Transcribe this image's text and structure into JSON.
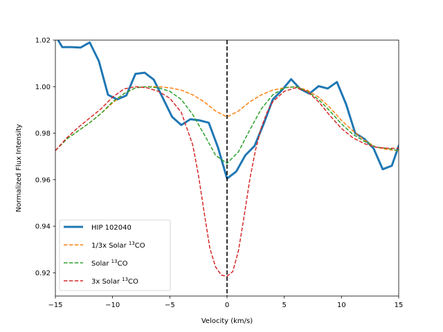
{
  "chart_data": {
    "type": "line",
    "xlabel": "Velocity (km/s)",
    "ylabel": "Normalized Flux Intensity",
    "xlim": [
      -15,
      15
    ],
    "ylim": [
      0.91,
      1.02
    ],
    "xticks": [
      -15,
      -10,
      -5,
      0,
      5,
      10,
      15
    ],
    "xtick_labels": [
      "−15",
      "−10",
      "−5",
      "0",
      "5",
      "10",
      "15"
    ],
    "yticks": [
      0.92,
      0.94,
      0.96,
      0.98,
      1.0,
      1.02
    ],
    "ytick_labels": [
      "0.92",
      "0.94",
      "0.96",
      "0.98",
      "1.00",
      "1.02"
    ],
    "grid": false,
    "legend_position": "lower-left",
    "vline": {
      "x": 0,
      "style": "dashed",
      "color": "#000000"
    },
    "series": [
      {
        "name": "HIP 102040",
        "color": "#1f77b4",
        "style": "solid",
        "width": 3,
        "x": [
          -15,
          -14.4,
          -13.6,
          -12.8,
          -12,
          -11.2,
          -10.4,
          -9.6,
          -8.8,
          -8,
          -7.2,
          -6.4,
          -5.6,
          -4.8,
          -4.0,
          -3.2,
          -2.4,
          -1.6,
          -0.8,
          0,
          0.8,
          1.6,
          2.4,
          3.2,
          4.0,
          4.8,
          5.6,
          6.4,
          7.2,
          8.0,
          8.8,
          9.6,
          10.4,
          11.2,
          12.0,
          12.8,
          13.6,
          14.4,
          15
        ],
        "y": [
          1.022,
          1.017,
          1.017,
          1.0168,
          1.019,
          1.011,
          0.9965,
          0.9945,
          0.9962,
          1.0055,
          1.006,
          1.003,
          0.995,
          0.987,
          0.9835,
          0.986,
          0.9855,
          0.9845,
          0.974,
          0.9605,
          0.9635,
          0.9705,
          0.9745,
          0.984,
          0.9945,
          0.9985,
          1.0032,
          0.999,
          0.997,
          1.0002,
          0.9992,
          1.002,
          0.9925,
          0.98,
          0.9775,
          0.9735,
          0.9645,
          0.966,
          0.9745
        ]
      },
      {
        "name": "1/3x Solar 13CO",
        "label_main": "1/3x Solar ",
        "label_sup": "13",
        "label_tail": "CO",
        "color": "#ff7f0e",
        "style": "dashed",
        "width": 1.5,
        "x": [
          -15,
          -14,
          -13,
          -12,
          -11,
          -10,
          -9,
          -8,
          -7,
          -6,
          -5,
          -4,
          -3,
          -2,
          -1,
          0,
          1,
          2,
          3,
          4,
          5,
          6,
          7,
          8,
          9,
          10,
          11,
          12,
          13,
          14,
          15
        ],
        "y": [
          0.9725,
          0.9775,
          0.981,
          0.9845,
          0.9885,
          0.993,
          0.997,
          0.9995,
          1.0,
          1.0,
          0.9995,
          0.9985,
          0.9965,
          0.9935,
          0.9895,
          0.987,
          0.9895,
          0.9935,
          0.9965,
          0.9985,
          0.9995,
          1.0,
          0.9985,
          0.9955,
          0.991,
          0.9855,
          0.981,
          0.977,
          0.974,
          0.973,
          0.9725
        ]
      },
      {
        "name": "Solar 13CO",
        "label_main": "Solar ",
        "label_sup": "13",
        "label_tail": "CO",
        "color": "#2ca02c",
        "style": "dashed",
        "width": 1.5,
        "x": [
          -15,
          -14,
          -13,
          -12,
          -11,
          -10,
          -9,
          -8,
          -7,
          -6,
          -5,
          -4,
          -3,
          -2,
          -1,
          0,
          1,
          2,
          3,
          4,
          5,
          6,
          7,
          8,
          9,
          10,
          11,
          12,
          13,
          14,
          15
        ],
        "y": [
          0.9725,
          0.9775,
          0.981,
          0.9845,
          0.9885,
          0.9935,
          0.997,
          0.9995,
          1.0,
          0.9995,
          0.998,
          0.9945,
          0.988,
          0.9795,
          0.9705,
          0.967,
          0.972,
          0.9815,
          0.9905,
          0.9965,
          0.9995,
          1.0,
          0.998,
          0.9945,
          0.9895,
          0.984,
          0.9795,
          0.9765,
          0.974,
          0.9735,
          0.9725
        ]
      },
      {
        "name": "3x Solar 13CO",
        "label_main": "3x Solar ",
        "label_sup": "13",
        "label_tail": "CO",
        "color": "#d62728",
        "style": "dashed",
        "width": 1.5,
        "x": [
          -15,
          -14,
          -13,
          -12,
          -11,
          -10,
          -9,
          -8,
          -7,
          -6,
          -5,
          -4,
          -3,
          -2.5,
          -2,
          -1.5,
          -1,
          -0.5,
          0,
          0.5,
          1,
          1.5,
          2,
          2.5,
          3,
          3.5,
          4,
          5,
          6,
          7,
          8,
          9,
          10,
          11,
          12,
          13,
          14,
          15
        ],
        "y": [
          0.9725,
          0.978,
          0.9825,
          0.9865,
          0.9905,
          0.9955,
          0.999,
          1.0,
          0.9995,
          0.998,
          0.995,
          0.989,
          0.975,
          0.962,
          0.946,
          0.9305,
          0.9225,
          0.919,
          0.9185,
          0.9205,
          0.9295,
          0.9445,
          0.9605,
          0.973,
          0.9825,
          0.989,
          0.9935,
          0.998,
          0.9995,
          0.998,
          0.9935,
          0.9875,
          0.982,
          0.978,
          0.9755,
          0.974,
          0.9735,
          0.9735
        ]
      }
    ]
  }
}
